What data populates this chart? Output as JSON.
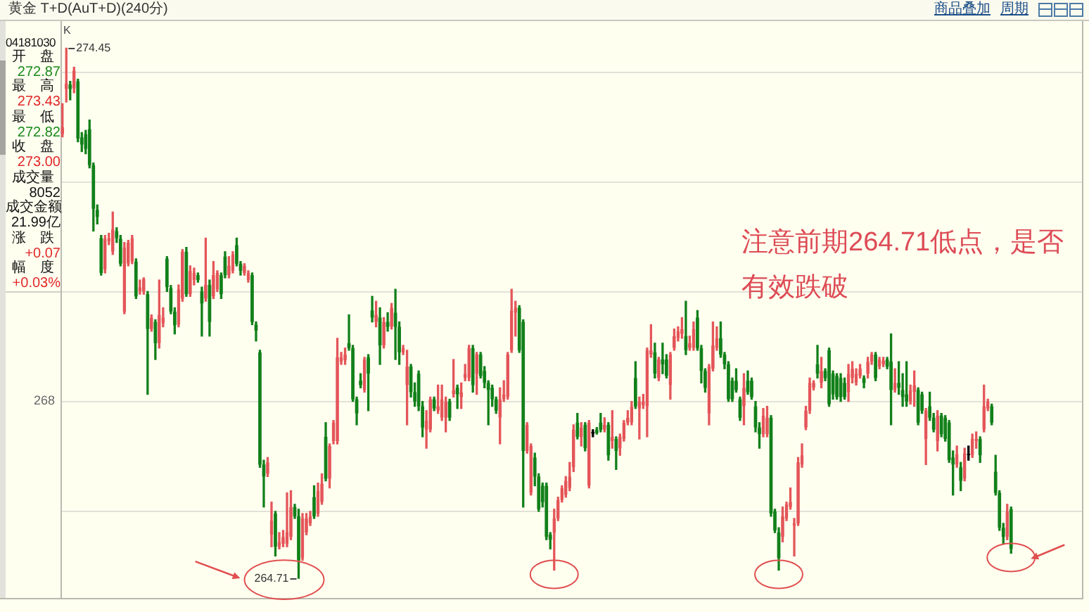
{
  "chart_data": {
    "type": "candlestick",
    "title": "黄金 T+D(AuT+D)(240分)",
    "categories": [
      null,
      null,
      null,
      null,
      null,
      null,
      null,
      null,
      null,
      null,
      null,
      null,
      null,
      null,
      null,
      null,
      null,
      null,
      null,
      null,
      null,
      null,
      null,
      null,
      null,
      null,
      null,
      null,
      null,
      null,
      null,
      null,
      null,
      null,
      null,
      null,
      null,
      null,
      null,
      null,
      null,
      null,
      null,
      null,
      null,
      null,
      null,
      null,
      null,
      null,
      null,
      null,
      null,
      null,
      null,
      null,
      null,
      null,
      null,
      null,
      null,
      null,
      null,
      null,
      null,
      null,
      null,
      null,
      null,
      null,
      null,
      null,
      null,
      null,
      null,
      null,
      null,
      null,
      null,
      null,
      null,
      null,
      null,
      null,
      null,
      null,
      null,
      null,
      null,
      null,
      null,
      null,
      null,
      null,
      null,
      null,
      null,
      null,
      null,
      null,
      null,
      null,
      null,
      null,
      null,
      null,
      null,
      null,
      null,
      null,
      null,
      null,
      null,
      null,
      null,
      null,
      null,
      null,
      null,
      null,
      null,
      null,
      null,
      null,
      null,
      null,
      null,
      null,
      null,
      null,
      null,
      null,
      null,
      null,
      null,
      null,
      null,
      null,
      null,
      null,
      null,
      null,
      null,
      null,
      null,
      null,
      null,
      null,
      null,
      null,
      null,
      null,
      null,
      null,
      null,
      null,
      null,
      null,
      null,
      null,
      null,
      null,
      null,
      null,
      null,
      null,
      null,
      null,
      null,
      null,
      null,
      null,
      null,
      null,
      null,
      null,
      null,
      null,
      null,
      null,
      null,
      null,
      null,
      null,
      null,
      null,
      null,
      null,
      null,
      null,
      null,
      null,
      null,
      null,
      null,
      null,
      null,
      null,
      null,
      null,
      null,
      null,
      null,
      null,
      null,
      null,
      null,
      null,
      null,
      null,
      null,
      null,
      null,
      null,
      null,
      null,
      null,
      null,
      null,
      null,
      null,
      null,
      null,
      null,
      null,
      null,
      null,
      null,
      null,
      null,
      null,
      null,
      null,
      null,
      null,
      null,
      null,
      null,
      null,
      null,
      null,
      null,
      null,
      null,
      null,
      null
    ],
    "ohlc": [
      [
        272.87,
        273.43,
        272.82,
        273.0
      ],
      [
        273.7,
        274.45,
        273.46,
        273.8
      ],
      [
        273.78,
        273.84,
        273.5,
        273.7
      ],
      [
        273.71,
        274.1,
        273.63,
        274.04
      ],
      [
        273.84,
        273.88,
        272.73,
        272.79
      ],
      [
        272.81,
        272.9,
        272.55,
        272.68
      ],
      [
        272.87,
        272.94,
        272.51,
        272.6
      ],
      [
        272.96,
        273.13,
        272.25,
        272.3
      ],
      [
        272.3,
        272.34,
        271.09,
        271.5
      ],
      [
        271.48,
        271.57,
        271.22,
        271.35
      ],
      [
        270.96,
        271.01,
        270.28,
        270.32
      ],
      [
        270.38,
        271.01,
        270.32,
        270.95
      ],
      [
        270.9,
        271.05,
        270.84,
        270.96
      ],
      [
        270.71,
        271.44,
        270.66,
        271.12
      ],
      [
        271.09,
        271.15,
        270.88,
        270.96
      ],
      [
        270.95,
        271.01,
        270.45,
        270.49
      ],
      [
        269.61,
        270.88,
        269.57,
        270.79
      ],
      [
        270.49,
        270.92,
        270.45,
        270.88
      ],
      [
        270.53,
        271.01,
        270.49,
        270.96
      ],
      [
        270.53,
        270.58,
        269.85,
        269.89
      ],
      [
        269.98,
        270.19,
        269.93,
        270.06
      ],
      [
        269.98,
        270.23,
        269.93,
        270.21
      ],
      [
        269.93,
        269.98,
        268.09,
        269.29
      ],
      [
        269.29,
        269.55,
        269.25,
        269.5
      ],
      [
        269.42,
        269.46,
        268.73,
        269.03
      ],
      [
        269.03,
        270.19,
        268.94,
        269.55
      ],
      [
        269.4,
        269.68,
        269.33,
        269.5
      ],
      [
        270.58,
        270.62,
        269.98,
        270.06
      ],
      [
        270.04,
        270.09,
        269.57,
        269.61
      ],
      [
        269.61,
        269.68,
        269.2,
        269.36
      ],
      [
        269.37,
        270.1,
        269.33,
        270.02
      ],
      [
        269.85,
        270.75,
        269.8,
        270.71
      ],
      [
        270.71,
        270.79,
        269.89,
        269.93
      ],
      [
        269.93,
        270.45,
        269.89,
        270.36
      ],
      [
        270.19,
        270.41,
        270.1,
        270.32
      ],
      [
        270.28,
        270.32,
        270.15,
        270.19
      ],
      [
        269.98,
        270.06,
        269.16,
        269.76
      ],
      [
        269.85,
        270.96,
        269.8,
        270.1
      ],
      [
        270.1,
        270.19,
        269.16,
        269.42
      ],
      [
        269.89,
        270.53,
        269.85,
        270.28
      ],
      [
        270.02,
        270.36,
        269.98,
        270.32
      ],
      [
        270.28,
        270.32,
        269.85,
        269.93
      ],
      [
        270.62,
        270.71,
        270.23,
        270.28
      ],
      [
        270.28,
        270.62,
        270.23,
        270.45
      ],
      [
        270.36,
        270.71,
        270.32,
        270.66
      ],
      [
        270.83,
        270.96,
        270.45,
        270.49
      ],
      [
        270.49,
        270.53,
        270.28,
        270.36
      ],
      [
        270.32,
        270.49,
        270.28,
        270.45
      ],
      [
        270.19,
        270.36,
        270.15,
        270.32
      ],
      [
        270.28,
        270.32,
        269.37,
        269.42
      ],
      [
        269.37,
        269.42,
        269.07,
        269.26
      ],
      [
        268.86,
        268.9,
        266.75,
        266.8
      ],
      [
        266.8,
        266.88,
        266.02,
        266.58
      ],
      [
        266.63,
        266.93,
        266.58,
        266.84
      ],
      [
        265.51,
        266.11,
        265.29,
        265.77
      ],
      [
        265.9,
        265.94,
        265.12,
        265.29
      ],
      [
        265.29,
        265.55,
        265.25,
        265.38
      ],
      [
        265.34,
        265.59,
        265.29,
        265.47
      ],
      [
        265.34,
        266.28,
        265.29,
        265.56
      ],
      [
        265.47,
        266.32,
        265.42,
        266.02
      ],
      [
        266.02,
        266.07,
        265.81,
        265.85
      ],
      [
        265.85,
        265.98,
        264.71,
        265.04
      ],
      [
        265.08,
        265.9,
        265.04,
        265.81
      ],
      [
        265.55,
        265.9,
        265.51,
        265.81
      ],
      [
        265.72,
        265.94,
        265.68,
        265.85
      ],
      [
        266.2,
        266.41,
        265.81,
        265.85
      ],
      [
        265.9,
        266.46,
        265.85,
        266.32
      ],
      [
        266.11,
        266.63,
        266.07,
        266.45
      ],
      [
        267.31,
        267.57,
        266.5,
        266.54
      ],
      [
        266.54,
        267.18,
        266.37,
        267.14
      ],
      [
        267.23,
        267.61,
        267.18,
        267.57
      ],
      [
        267.23,
        269.12,
        267.18,
        268.77
      ],
      [
        268.69,
        268.86,
        268.64,
        268.77
      ],
      [
        268.71,
        268.94,
        268.64,
        268.82
      ],
      [
        269.03,
        269.55,
        268.9,
        268.94
      ],
      [
        268.94,
        268.99,
        267.96,
        268.0
      ],
      [
        268.0,
        268.04,
        267.53,
        267.74
      ],
      [
        268.34,
        268.47,
        268.21,
        268.26
      ],
      [
        268.17,
        268.77,
        268.13,
        268.73
      ],
      [
        268.77,
        268.82,
        267.79,
        268.47
      ],
      [
        269.63,
        269.89,
        269.42,
        269.5
      ],
      [
        269.42,
        269.8,
        269.33,
        269.55
      ],
      [
        269.5,
        269.68,
        268.64,
        268.99
      ],
      [
        268.99,
        269.5,
        268.94,
        269.42
      ],
      [
        269.42,
        269.59,
        269.25,
        269.33
      ],
      [
        269.33,
        269.76,
        269.29,
        269.68
      ],
      [
        269.59,
        270.02,
        268.73,
        269.33
      ],
      [
        269.33,
        269.42,
        268.64,
        268.86
      ],
      [
        268.86,
        268.99,
        268.82,
        268.94
      ],
      [
        268.26,
        268.9,
        267.53,
        268.6
      ],
      [
        268.6,
        268.64,
        268.04,
        268.13
      ],
      [
        268.13,
        268.3,
        267.87,
        267.96
      ],
      [
        268.47,
        268.52,
        267.79,
        267.87
      ],
      [
        267.87,
        267.96,
        267.31,
        267.48
      ],
      [
        267.44,
        267.79,
        267.1,
        267.61
      ],
      [
        267.44,
        268.04,
        267.4,
        268.0
      ],
      [
        268.0,
        268.04,
        267.79,
        267.83
      ],
      [
        267.79,
        268.26,
        267.74,
        267.87
      ],
      [
        267.66,
        268.26,
        267.61,
        268.0
      ],
      [
        267.66,
        268.04,
        267.4,
        267.96
      ],
      [
        267.96,
        268.0,
        267.61,
        267.66
      ],
      [
        268.09,
        268.73,
        268.04,
        268.17
      ],
      [
        268.21,
        268.26,
        267.83,
        268.09
      ],
      [
        268.04,
        268.3,
        267.83,
        268.13
      ],
      [
        268.39,
        268.64,
        268.34,
        268.47
      ],
      [
        268.39,
        268.99,
        268.34,
        268.94
      ],
      [
        268.94,
        268.99,
        268.13,
        268.26
      ],
      [
        268.47,
        268.86,
        268.09,
        268.82
      ],
      [
        268.82,
        268.86,
        268.39,
        268.43
      ],
      [
        268.52,
        268.6,
        268.21,
        268.3
      ],
      [
        268.3,
        268.34,
        267.53,
        268.17
      ],
      [
        268.21,
        268.26,
        267.87,
        268.0
      ],
      [
        268.0,
        268.04,
        267.74,
        267.79
      ],
      [
        267.66,
        268.21,
        267.18,
        268.0
      ],
      [
        268.0,
        268.34,
        267.96,
        268.09
      ],
      [
        268.04,
        268.86,
        268.0,
        268.82
      ],
      [
        268.9,
        270.02,
        268.86,
        269.63
      ],
      [
        269.59,
        269.8,
        269.16,
        269.68
      ],
      [
        269.68,
        269.72,
        268.86,
        268.9
      ],
      [
        269.42,
        269.46,
        266.02,
        267.05
      ],
      [
        267.05,
        267.57,
        267.01,
        267.53
      ],
      [
        266.28,
        267.18,
        266.24,
        267.14
      ],
      [
        266.93,
        267.01,
        266.41,
        266.58
      ],
      [
        266.58,
        266.63,
        265.94,
        265.98
      ],
      [
        266.41,
        266.46,
        266.02,
        266.11
      ],
      [
        266.41,
        266.46,
        265.42,
        265.47
      ],
      [
        265.51,
        265.55,
        265.25,
        265.42
      ],
      [
        265.55,
        265.98,
        264.86,
        265.81
      ],
      [
        265.81,
        266.2,
        265.77,
        266.15
      ],
      [
        266.15,
        266.41,
        266.11,
        266.37
      ],
      [
        266.24,
        266.58,
        266.2,
        266.5
      ],
      [
        266.37,
        266.84,
        266.32,
        266.58
      ],
      [
        266.75,
        267.53,
        266.67,
        267.44
      ],
      [
        267.57,
        267.74,
        267.27,
        267.31
      ],
      [
        267.31,
        267.57,
        267.14,
        267.48
      ],
      [
        267.53,
        267.57,
        267.05,
        267.1
      ],
      [
        266.41,
        267.61,
        266.37,
        267.57
      ],
      [
        267.4,
        267.44,
        267.31,
        267.37
      ],
      [
        267.44,
        267.48,
        267.36,
        267.38
      ],
      [
        267.57,
        267.74,
        267.4,
        267.44
      ],
      [
        267.44,
        267.66,
        267.4,
        267.53
      ],
      [
        267.53,
        267.57,
        266.88,
        266.97
      ],
      [
        267.23,
        267.79,
        267.1,
        267.31
      ],
      [
        267.27,
        267.31,
        266.71,
        267.05
      ],
      [
        267.1,
        267.36,
        266.97,
        267.31
      ],
      [
        267.27,
        267.61,
        267.23,
        267.57
      ],
      [
        267.57,
        267.79,
        267.53,
        267.66
      ],
      [
        267.57,
        267.96,
        267.53,
        267.87
      ],
      [
        268.39,
        268.69,
        267.83,
        267.87
      ],
      [
        267.83,
        268.04,
        267.27,
        267.96
      ],
      [
        267.89,
        268.09,
        267.83,
        267.96
      ],
      [
        267.87,
        268.94,
        267.31,
        268.9
      ],
      [
        268.82,
        269.37,
        268.77,
        268.9
      ],
      [
        268.86,
        269.03,
        268.39,
        268.47
      ],
      [
        268.39,
        268.77,
        268.34,
        268.73
      ],
      [
        268.73,
        269.03,
        268.47,
        268.64
      ],
      [
        268.73,
        268.82,
        268.39,
        268.43
      ],
      [
        268.26,
        268.86,
        268.0,
        268.82
      ],
      [
        268.94,
        269.29,
        268.9,
        269.16
      ],
      [
        269.12,
        269.33,
        269.07,
        269.25
      ],
      [
        269.2,
        269.5,
        269.12,
        269.29
      ],
      [
        269.16,
        269.8,
        268.82,
        268.9
      ],
      [
        268.94,
        269.16,
        268.9,
        269.03
      ],
      [
        268.94,
        269.42,
        268.9,
        269.29
      ],
      [
        269.5,
        269.63,
        268.9,
        268.94
      ],
      [
        268.94,
        268.99,
        268.3,
        268.52
      ],
      [
        268.52,
        268.56,
        268.13,
        268.21
      ],
      [
        267.74,
        268.64,
        267.53,
        268.6
      ],
      [
        268.56,
        269.42,
        268.52,
        268.99
      ],
      [
        268.94,
        269.33,
        268.9,
        269.12
      ],
      [
        269.12,
        269.42,
        268.77,
        268.82
      ],
      [
        268.82,
        268.86,
        268.56,
        268.64
      ],
      [
        268.64,
        268.69,
        267.96,
        268.0
      ],
      [
        268.34,
        268.39,
        267.96,
        268.0
      ],
      [
        268.34,
        268.56,
        268.13,
        268.17
      ],
      [
        268.0,
        268.04,
        267.61,
        267.66
      ],
      [
        267.87,
        268.47,
        267.53,
        268.21
      ],
      [
        268.34,
        268.52,
        268.09,
        268.13
      ],
      [
        268.34,
        268.39,
        268.0,
        268.04
      ],
      [
        267.87,
        267.96,
        267.4,
        267.48
      ],
      [
        267.48,
        267.57,
        267.1,
        267.36
      ],
      [
        267.36,
        267.83,
        267.31,
        267.7
      ],
      [
        267.36,
        267.87,
        267.31,
        267.66
      ],
      [
        267.66,
        267.7,
        265.85,
        265.9
      ],
      [
        265.94,
        265.98,
        265.55,
        265.59
      ],
      [
        265.55,
        265.64,
        264.86,
        265.08
      ],
      [
        265.47,
        266.02,
        265.38,
        265.85
      ],
      [
        265.81,
        266.11,
        265.77,
        266.07
      ],
      [
        266.02,
        266.37,
        265.98,
        266.11
      ],
      [
        265.68,
        265.81,
        265.12,
        265.72
      ],
      [
        265.72,
        266.93,
        265.68,
        266.84
      ],
      [
        266.8,
        267.18,
        266.75,
        266.97
      ],
      [
        267.48,
        267.87,
        267.44,
        267.79
      ],
      [
        267.79,
        268.39,
        267.74,
        268.3
      ],
      [
        268.21,
        268.34,
        268.17,
        268.3
      ],
      [
        268.64,
        268.99,
        268.39,
        268.47
      ],
      [
        268.3,
        268.77,
        268.21,
        268.52
      ],
      [
        268.52,
        268.56,
        268.34,
        268.39
      ],
      [
        268.9,
        268.94,
        267.87,
        267.91
      ],
      [
        268.47,
        268.52,
        268.0,
        268.09
      ],
      [
        268.43,
        268.47,
        268.0,
        268.04
      ],
      [
        268.39,
        268.47,
        267.96,
        268.04
      ],
      [
        268.3,
        268.39,
        268.0,
        268.04
      ],
      [
        268.13,
        268.64,
        267.96,
        268.47
      ],
      [
        268.39,
        268.69,
        268.3,
        268.56
      ],
      [
        268.3,
        268.56,
        268.26,
        268.47
      ],
      [
        268.43,
        268.64,
        268.39,
        268.56
      ],
      [
        268.39,
        268.43,
        268.21,
        268.3
      ],
      [
        268.47,
        268.77,
        268.39,
        268.69
      ],
      [
        268.69,
        268.86,
        268.64,
        268.82
      ],
      [
        268.82,
        268.86,
        268.34,
        268.39
      ],
      [
        268.6,
        268.77,
        268.56,
        268.73
      ],
      [
        268.64,
        268.77,
        268.6,
        268.71
      ],
      [
        268.73,
        268.77,
        268.56,
        268.6
      ],
      [
        268.69,
        269.2,
        267.53,
        268.17
      ],
      [
        268.17,
        268.56,
        268.13,
        268.3
      ],
      [
        268.3,
        268.69,
        268.09,
        268.21
      ],
      [
        268.17,
        268.47,
        267.87,
        268.04
      ],
      [
        268.09,
        268.69,
        267.87,
        267.96
      ],
      [
        267.96,
        268.26,
        267.91,
        268.17
      ],
      [
        268.13,
        268.52,
        267.87,
        268.26
      ],
      [
        268.17,
        268.21,
        267.53,
        267.57
      ],
      [
        268.09,
        268.13,
        267.74,
        267.79
      ],
      [
        267.27,
        267.83,
        266.8,
        267.79
      ],
      [
        267.87,
        268.13,
        267.61,
        267.66
      ],
      [
        267.66,
        267.74,
        267.4,
        267.44
      ],
      [
        267.23,
        267.79,
        267.05,
        267.7
      ],
      [
        267.7,
        267.74,
        267.31,
        267.36
      ],
      [
        267.66,
        267.7,
        267.23,
        267.27
      ],
      [
        267.57,
        267.61,
        266.84,
        266.88
      ],
      [
        266.93,
        267.05,
        266.24,
        266.8
      ],
      [
        266.8,
        267.14,
        266.75,
        266.99
      ],
      [
        266.75,
        266.84,
        266.32,
        266.5
      ],
      [
        266.54,
        267.1,
        266.5,
        267.01
      ],
      [
        266.97,
        267.14,
        266.88,
        267.0
      ],
      [
        266.97,
        267.36,
        266.93,
        267.27
      ],
      [
        267.23,
        267.4,
        267.1,
        267.27
      ],
      [
        267.27,
        267.31,
        266.84,
        266.97
      ],
      [
        267.44,
        268.26,
        267.4,
        267.87
      ],
      [
        267.83,
        268.0,
        267.79,
        267.96
      ],
      [
        267.87,
        267.91,
        267.53,
        267.57
      ],
      [
        266.67,
        266.97,
        266.24,
        266.28
      ],
      [
        266.28,
        266.32,
        265.59,
        265.64
      ],
      [
        265.64,
        265.72,
        265.34,
        265.47
      ],
      [
        265.47,
        266.07,
        265.42,
        265.94
      ],
      [
        265.98,
        266.02,
        265.17,
        265.25
      ]
    ],
    "colors": [
      "#e4565a",
      "#e4565a",
      "#12801a",
      "#e4565a",
      "#12801a",
      "#12801a",
      "#12801a",
      "#12801a",
      "#12801a",
      "#12801a",
      "#12801a",
      "#e4565a",
      "#e4565a",
      "#e4565a",
      "#12801a",
      "#12801a",
      "#e4565a",
      "#e4565a",
      "#e4565a",
      "#12801a",
      "#e4565a",
      "#e4565a",
      "#12801a",
      "#e4565a",
      "#12801a",
      "#e4565a",
      "#e4565a",
      "#12801a",
      "#12801a",
      "#12801a",
      "#e4565a",
      "#e4565a",
      "#12801a",
      "#e4565a",
      "#e4565a",
      "#12801a",
      "#12801a",
      "#e4565a",
      "#12801a",
      "#e4565a",
      "#e4565a",
      "#12801a",
      "#12801a",
      "#e4565a",
      "#e4565a",
      "#12801a",
      "#12801a",
      "#e4565a",
      "#e4565a",
      "#12801a",
      "#12801a",
      "#12801a",
      "#12801a",
      "#e4565a",
      "#e4565a",
      "#12801a",
      "#e4565a",
      "#e4565a",
      "#e4565a",
      "#e4565a",
      "#12801a",
      "#12801a",
      "#e4565a",
      "#e4565a",
      "#e4565a",
      "#12801a",
      "#e4565a",
      "#e4565a",
      "#12801a",
      "#e4565a",
      "#e4565a",
      "#e4565a",
      "#e4565a",
      "#e4565a",
      "#12801a",
      "#12801a",
      "#12801a",
      "#12801a",
      "#e4565a",
      "#12801a",
      "#12801a",
      "#e4565a",
      "#12801a",
      "#e4565a",
      "#12801a",
      "#e4565a",
      "#12801a",
      "#12801a",
      "#e4565a",
      "#e4565a",
      "#12801a",
      "#12801a",
      "#12801a",
      "#12801a",
      "#e4565a",
      "#e4565a",
      "#12801a",
      "#e4565a",
      "#e4565a",
      "#e4565a",
      "#12801a",
      "#e4565a",
      "#12801a",
      "#e4565a",
      "#e4565a",
      "#e4565a",
      "#12801a",
      "#e4565a",
      "#12801a",
      "#12801a",
      "#12801a",
      "#12801a",
      "#12801a",
      "#e4565a",
      "#e4565a",
      "#e4565a",
      "#e4565a",
      "#e4565a",
      "#12801a",
      "#12801a",
      "#e4565a",
      "#e4565a",
      "#12801a",
      "#12801a",
      "#12801a",
      "#12801a",
      "#12801a",
      "#e4565a",
      "#e4565a",
      "#e4565a",
      "#e4565a",
      "#e4565a",
      "#e4565a",
      "#12801a",
      "#e4565a",
      "#12801a",
      "#e4565a",
      "#000000",
      "#12801a",
      "#12801a",
      "#e4565a",
      "#12801a",
      "#e4565a",
      "#12801a",
      "#e4565a",
      "#e4565a",
      "#e4565a",
      "#e4565a",
      "#12801a",
      "#e4565a",
      "#e4565a",
      "#e4565a",
      "#e4565a",
      "#12801a",
      "#e4565a",
      "#12801a",
      "#12801a",
      "#e4565a",
      "#e4565a",
      "#e4565a",
      "#e4565a",
      "#12801a",
      "#e4565a",
      "#e4565a",
      "#12801a",
      "#12801a",
      "#12801a",
      "#e4565a",
      "#e4565a",
      "#e4565a",
      "#12801a",
      "#12801a",
      "#12801a",
      "#12801a",
      "#12801a",
      "#12801a",
      "#e4565a",
      "#12801a",
      "#12801a",
      "#12801a",
      "#12801a",
      "#e4565a",
      "#e4565a",
      "#12801a",
      "#12801a",
      "#12801a",
      "#e4565a",
      "#e4565a",
      "#e4565a",
      "#e4565a",
      "#e4565a",
      "#e4565a",
      "#e4565a",
      "#e4565a",
      "#e4565a",
      "#12801a",
      "#e4565a",
      "#12801a",
      "#12801a",
      "#12801a",
      "#12801a",
      "#12801a",
      "#12801a",
      "#e4565a",
      "#e4565a",
      "#e4565a",
      "#e4565a",
      "#12801a",
      "#e4565a",
      "#e4565a",
      "#12801a",
      "#e4565a",
      "#e4565a",
      "#12801a",
      "#12801a",
      "#e4565a",
      "#12801a",
      "#12801a",
      "#12801a",
      "#e4565a",
      "#e4565a",
      "#12801a",
      "#12801a",
      "#e4565a",
      "#12801a",
      "#12801a",
      "#e4565a",
      "#12801a",
      "#12801a",
      "#12801a",
      "#12801a",
      "#e4565a",
      "#12801a",
      "#e4565a",
      "#000000",
      "#e4565a",
      "#e4565a",
      "#12801a",
      "#e4565a",
      "#e4565a",
      "#12801a",
      "#12801a",
      "#12801a",
      "#12801a",
      "#e4565a",
      "#12801a"
    ],
    "grid": "y",
    "tick_labels": false,
    "annotations": [
      "K",
      "274.45",
      "264.71",
      "268",
      "注意前期264.71低点，是否有效跌破",
      "04181030",
      "开　盘",
      "272.87",
      "最　高",
      "273.43",
      "最　低",
      "272.82",
      "收　盘",
      "273.00",
      "成交量",
      "8052",
      "成交金额",
      "21.99亿",
      "涨　跌",
      "+0.07",
      "幅　度",
      "+0.03%",
      "商品叠加",
      "周期"
    ]
  }
}
